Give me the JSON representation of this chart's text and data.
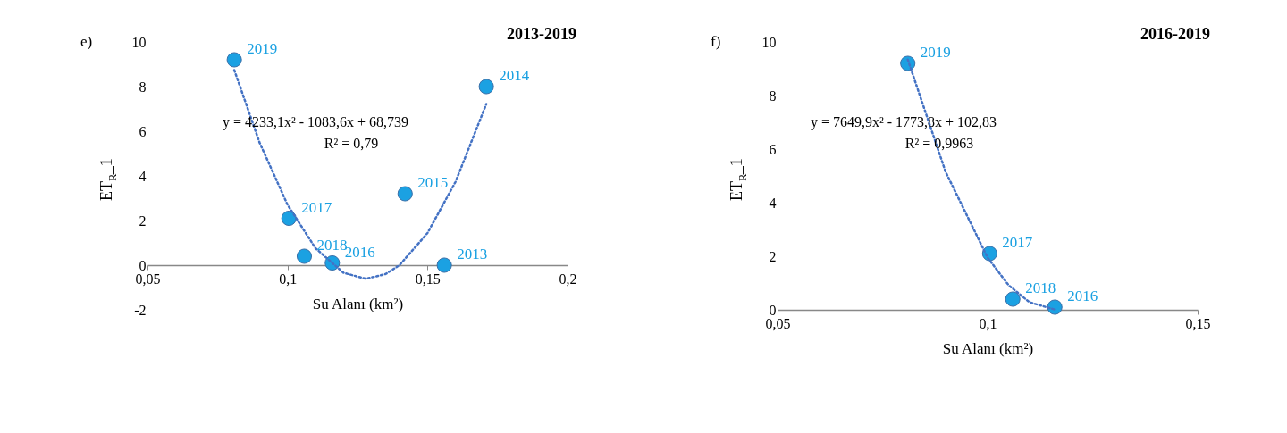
{
  "chart_data": [
    {
      "type": "scatter",
      "title": "2013-2019",
      "xlabel": "Su Alanı (km²)",
      "ylabel": "ET$_{R}$_1",
      "xlim": [
        0.05,
        0.2
      ],
      "ylim": [
        -2,
        10
      ],
      "xticks": [
        {
          "value": 0.05,
          "label": "0,05"
        },
        {
          "value": 0.1,
          "label": "0,1"
        },
        {
          "value": 0.15,
          "label": "0,15"
        },
        {
          "value": 0.2,
          "label": "0,2"
        }
      ],
      "yticks": [
        -2,
        0,
        2,
        4,
        6,
        8,
        10
      ],
      "grid": false,
      "marker": "circle",
      "series": [
        {
          "color": "#1ba1e2",
          "x": [
            0.156,
            0.171,
            0.142,
            0.116,
            0.1005,
            0.106,
            0.081
          ],
          "values": [
            0.0,
            8.0,
            3.2,
            0.1,
            2.1,
            0.4,
            9.2
          ]
        },
        {
          "type": "line",
          "color": "#4472c4",
          "line_style": "dotted",
          "marker": "none",
          "x": [
            0.081,
            0.09,
            0.1,
            0.11,
            0.12,
            0.128,
            0.135,
            0.14,
            0.15,
            0.16,
            0.171
          ],
          "values": [
            8.74,
            5.5,
            2.71,
            0.76,
            -0.34,
            -0.61,
            -0.4,
            0.0,
            1.44,
            3.73,
            7.22
          ]
        }
      ],
      "annotations": [
        "e)",
        "y = 4233,1x² - 1083,6x + 68,739",
        "R² = 0,79",
        {
          "text": "2013",
          "x": 0.156,
          "y": 0.0
        },
        {
          "text": "2014",
          "x": 0.171,
          "y": 8.0
        },
        {
          "text": "2015",
          "x": 0.142,
          "y": 3.2
        },
        {
          "text": "2016",
          "x": 0.116,
          "y": 0.1
        },
        {
          "text": "2017",
          "x": 0.1005,
          "y": 2.1
        },
        {
          "text": "2018",
          "x": 0.106,
          "y": 0.4
        },
        {
          "text": "2019",
          "x": 0.081,
          "y": 9.2
        }
      ]
    },
    {
      "type": "scatter",
      "title": "2016-2019",
      "xlabel": "Su Alanı (km²)",
      "ylabel": "ET$_{R}$_1",
      "xlim": [
        0.05,
        0.15
      ],
      "ylim": [
        0,
        10
      ],
      "xticks": [
        {
          "value": 0.05,
          "label": "0,05"
        },
        {
          "value": 0.1,
          "label": "0,1"
        },
        {
          "value": 0.15,
          "label": "0,15"
        }
      ],
      "yticks": [
        0,
        2,
        4,
        6,
        8,
        10
      ],
      "grid": false,
      "marker": "circle",
      "series": [
        {
          "color": "#1ba1e2",
          "x": [
            0.116,
            0.1005,
            0.106,
            0.081
          ],
          "values": [
            0.1,
            2.1,
            0.4,
            9.2
          ]
        },
        {
          "type": "line",
          "color": "#4472c4",
          "line_style": "dotted",
          "marker": "none",
          "x": [
            0.081,
            0.09,
            0.1,
            0.105,
            0.11,
            0.116
          ],
          "values": [
            9.34,
            5.15,
            1.95,
            0.92,
            0.28,
            0.01
          ]
        }
      ],
      "annotations": [
        "f)",
        "y = 7649,9x² - 1773,8x + 102,83",
        "R² = 0,9963",
        {
          "text": "2016",
          "x": 0.116,
          "y": 0.1
        },
        {
          "text": "2017",
          "x": 0.1005,
          "y": 2.1
        },
        {
          "text": "2018",
          "x": 0.106,
          "y": 0.4
        },
        {
          "text": "2019",
          "x": 0.081,
          "y": 9.2
        }
      ]
    }
  ]
}
